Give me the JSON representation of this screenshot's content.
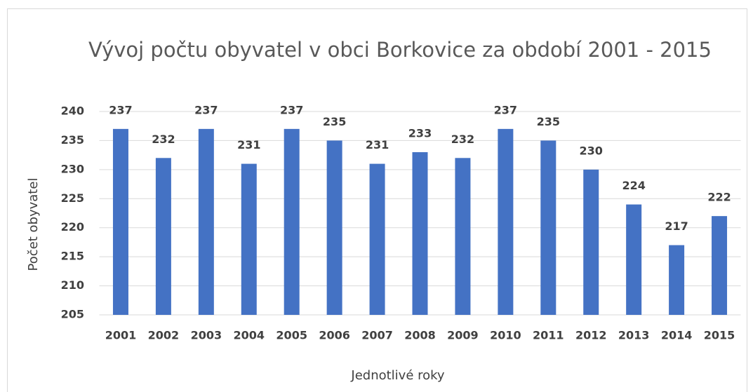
{
  "chart_data": {
    "type": "bar",
    "title": "Vývoj počtu obyvatel v obci Borkovice za období 2001 - 2015",
    "x_label": "Jednotlivé roky",
    "y_label": "Počet obyvatel",
    "categories": [
      "2001",
      "2002",
      "2003",
      "2004",
      "2005",
      "2006",
      "2007",
      "2008",
      "2009",
      "2010",
      "2011",
      "2012",
      "2013",
      "2014",
      "2015"
    ],
    "values": [
      237,
      232,
      237,
      231,
      237,
      235,
      231,
      233,
      232,
      237,
      235,
      230,
      224,
      217,
      222
    ],
    "color": "#4472c4",
    "ylim": [
      205,
      240
    ],
    "yticks": [
      205,
      210,
      215,
      220,
      225,
      230,
      235,
      240
    ],
    "grid": true
  }
}
